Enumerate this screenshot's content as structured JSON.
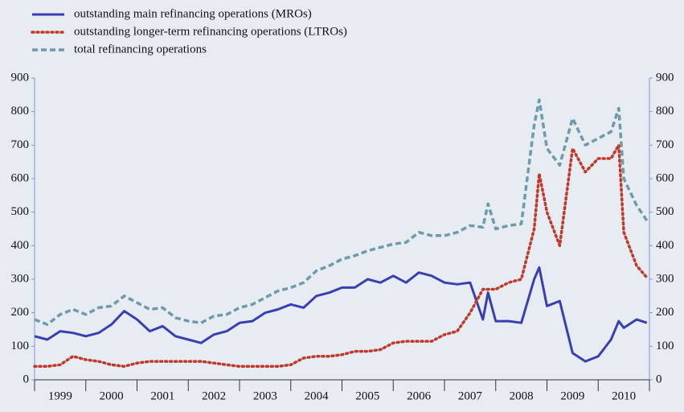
{
  "chart_data": {
    "type": "line",
    "categories": [
      "1999",
      "2000",
      "2001",
      "2002",
      "2003",
      "2004",
      "2005",
      "2006",
      "2007",
      "2008",
      "2009",
      "2010"
    ],
    "x": [
      1999,
      1999.25,
      1999.5,
      1999.75,
      2000,
      2000.25,
      2000.5,
      2000.75,
      2001,
      2001.25,
      2001.5,
      2001.75,
      2002,
      2002.25,
      2002.5,
      2002.75,
      2003,
      2003.25,
      2003.5,
      2003.75,
      2004,
      2004.25,
      2004.5,
      2004.75,
      2005,
      2005.25,
      2005.5,
      2005.75,
      2006,
      2006.25,
      2006.5,
      2006.75,
      2007,
      2007.25,
      2007.5,
      2007.75,
      2007.85,
      2008,
      2008.25,
      2008.5,
      2008.75,
      2008.85,
      2009,
      2009.25,
      2009.5,
      2009.75,
      2010,
      2010.25,
      2010.4,
      2010.5,
      2010.75,
      2010.95
    ],
    "xlim": [
      1999,
      2011
    ],
    "series": [
      {
        "name": "outstanding main refinancing operations (MROs)",
        "color": "#3a3fb0",
        "dash": "solid",
        "values": [
          130,
          120,
          145,
          140,
          130,
          140,
          165,
          205,
          180,
          145,
          160,
          130,
          120,
          110,
          135,
          145,
          170,
          175,
          200,
          210,
          225,
          215,
          250,
          260,
          275,
          275,
          300,
          290,
          310,
          290,
          320,
          310,
          290,
          285,
          290,
          180,
          260,
          175,
          175,
          170,
          300,
          335,
          220,
          235,
          80,
          55,
          70,
          120,
          175,
          155,
          180,
          170
        ]
      },
      {
        "name": "outstanding longer-term refinancing operations (LTROs)",
        "color": "#c0392b",
        "dash": "dot",
        "values": [
          40,
          40,
          45,
          70,
          60,
          55,
          45,
          40,
          50,
          55,
          55,
          55,
          55,
          55,
          50,
          45,
          40,
          40,
          40,
          40,
          45,
          65,
          70,
          70,
          75,
          85,
          85,
          90,
          110,
          115,
          115,
          115,
          135,
          145,
          200,
          270,
          270,
          270,
          290,
          300,
          450,
          615,
          500,
          400,
          690,
          620,
          660,
          660,
          700,
          440,
          340,
          305
        ]
      },
      {
        "name": "total refinancing operations",
        "color": "#6f9aa8",
        "dash": "dash",
        "values": [
          180,
          165,
          195,
          210,
          195,
          215,
          220,
          250,
          230,
          210,
          215,
          185,
          175,
          170,
          190,
          195,
          215,
          225,
          245,
          265,
          275,
          290,
          325,
          340,
          360,
          370,
          385,
          395,
          405,
          410,
          440,
          430,
          430,
          440,
          460,
          455,
          525,
          450,
          460,
          465,
          760,
          835,
          690,
          640,
          780,
          700,
          720,
          740,
          810,
          600,
          520,
          475
        ]
      }
    ],
    "ylim": [
      0,
      900
    ],
    "yticks": [
      0,
      100,
      200,
      300,
      400,
      500,
      600,
      700,
      800,
      900
    ],
    "y2lim": [
      0,
      900
    ],
    "y2ticks": [
      0,
      100,
      200,
      300,
      400,
      500,
      600,
      700,
      800,
      900
    ]
  }
}
